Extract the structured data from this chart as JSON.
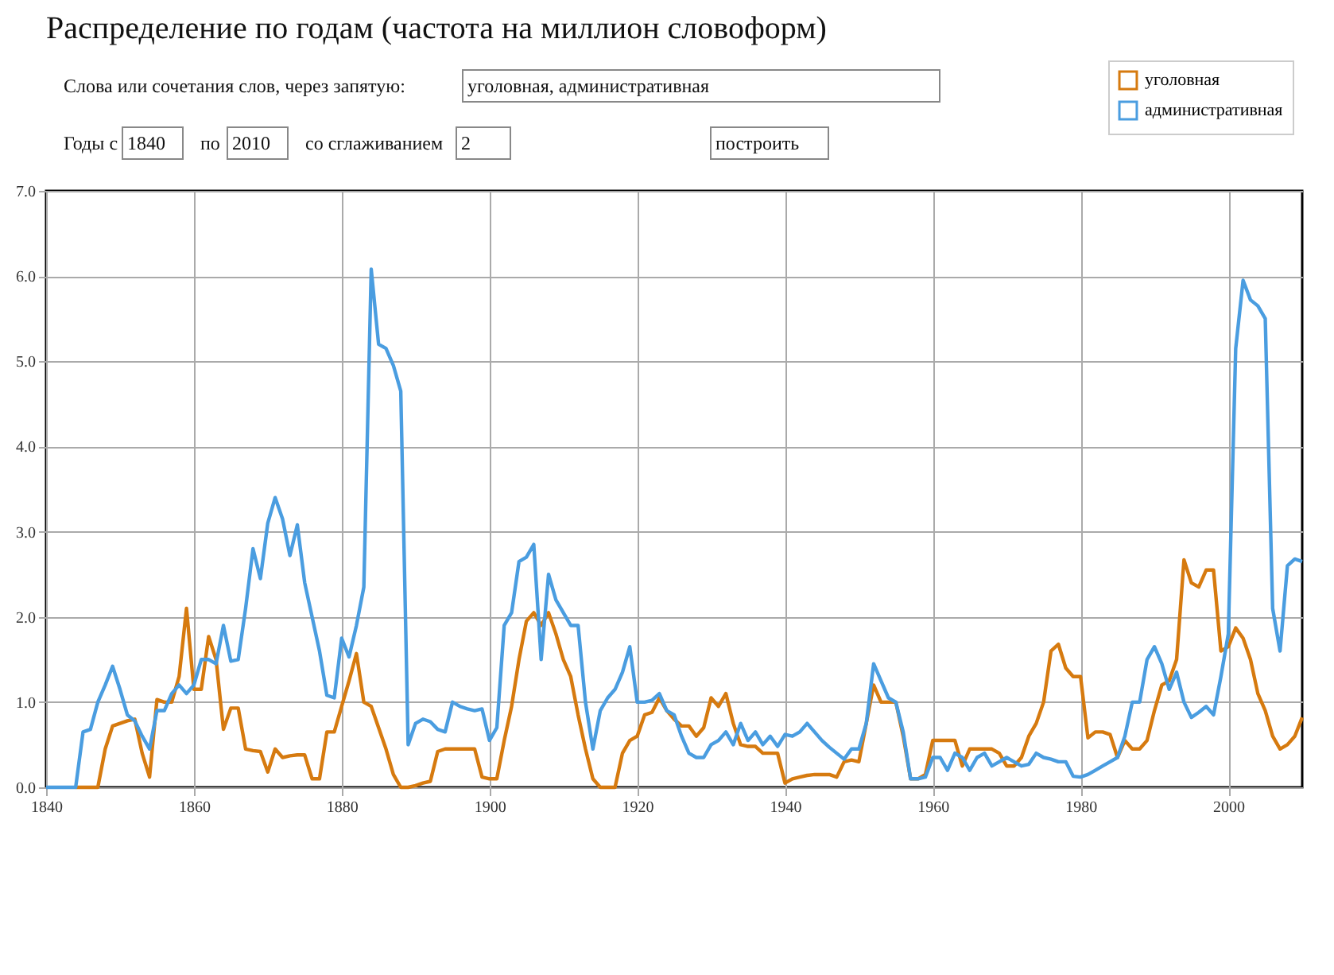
{
  "chart_data": {
    "type": "line",
    "title": "Распределение по годам (частота на миллион словоформ)",
    "annotations": [
      "Слова или сочетания слов, через запятую:",
      "уголовная, административная",
      "Годы с",
      "1840",
      "по",
      "2010",
      "со сглаживанием",
      "2",
      "построить"
    ],
    "x": [
      1840,
      1841,
      1842,
      1843,
      1844,
      1845,
      1846,
      1847,
      1848,
      1849,
      1850,
      1851,
      1852,
      1853,
      1854,
      1855,
      1856,
      1857,
      1858,
      1859,
      1860,
      1861,
      1862,
      1863,
      1864,
      1865,
      1866,
      1867,
      1868,
      1869,
      1870,
      1871,
      1872,
      1873,
      1874,
      1875,
      1876,
      1877,
      1878,
      1879,
      1880,
      1881,
      1882,
      1883,
      1884,
      1885,
      1886,
      1887,
      1888,
      1889,
      1890,
      1891,
      1892,
      1893,
      1894,
      1895,
      1896,
      1897,
      1898,
      1899,
      1900,
      1901,
      1902,
      1903,
      1904,
      1905,
      1906,
      1907,
      1908,
      1909,
      1910,
      1911,
      1912,
      1913,
      1914,
      1915,
      1916,
      1917,
      1918,
      1919,
      1920,
      1921,
      1922,
      1923,
      1924,
      1925,
      1926,
      1927,
      1928,
      1929,
      1930,
      1931,
      1932,
      1933,
      1934,
      1935,
      1936,
      1937,
      1938,
      1939,
      1940,
      1941,
      1942,
      1943,
      1944,
      1945,
      1946,
      1947,
      1948,
      1949,
      1950,
      1951,
      1952,
      1953,
      1954,
      1955,
      1956,
      1957,
      1958,
      1959,
      1960,
      1961,
      1962,
      1963,
      1964,
      1965,
      1966,
      1967,
      1968,
      1969,
      1970,
      1971,
      1972,
      1973,
      1974,
      1975,
      1976,
      1977,
      1978,
      1979,
      1980,
      1981,
      1982,
      1983,
      1984,
      1985,
      1986,
      1987,
      1988,
      1989,
      1990,
      1991,
      1992,
      1993,
      1994,
      1995,
      1996,
      1997,
      1998,
      1999,
      2000,
      2001,
      2002,
      2003,
      2004,
      2005,
      2006,
      2007,
      2008,
      2009,
      2010
    ],
    "series": [
      {
        "name": "уголовная",
        "color": "#d67a0f",
        "values": [
          null,
          null,
          null,
          null,
          0,
          0,
          0,
          0,
          0.45,
          0.72,
          0.75,
          0.78,
          0.8,
          0.4,
          0.12,
          1.03,
          1.0,
          1.0,
          1.3,
          2.1,
          1.15,
          1.15,
          1.77,
          1.5,
          0.68,
          0.93,
          0.93,
          0.45,
          0.43,
          0.42,
          0.18,
          0.45,
          0.35,
          0.37,
          0.38,
          0.38,
          0.1,
          0.1,
          0.65,
          0.65,
          0.95,
          1.25,
          1.57,
          1.0,
          0.95,
          0.7,
          0.45,
          0.15,
          0,
          0,
          0.02,
          0.05,
          0.07,
          0.42,
          0.45,
          0.45,
          0.45,
          0.45,
          0.45,
          0.12,
          0.1,
          0.1,
          0.55,
          0.95,
          1.5,
          1.95,
          2.05,
          1.9,
          2.05,
          1.8,
          1.5,
          1.3,
          0.85,
          0.45,
          0.1,
          0,
          0,
          0,
          0.4,
          0.55,
          0.6,
          0.85,
          0.88,
          1.05,
          0.9,
          0.8,
          0.72,
          0.72,
          0.6,
          0.7,
          1.05,
          0.95,
          1.1,
          0.75,
          0.5,
          0.48,
          0.48,
          0.4,
          0.4,
          0.4,
          0.05,
          0.1,
          0.12,
          0.14,
          0.15,
          0.15,
          0.15,
          0.12,
          0.3,
          0.32,
          0.3,
          0.75,
          1.2,
          1.0,
          1.0,
          1.0,
          0.6,
          0.1,
          0.1,
          0.15,
          0.55,
          0.55,
          0.55,
          0.55,
          0.25,
          0.45,
          0.45,
          0.45,
          0.45,
          0.4,
          0.25,
          0.25,
          0.35,
          0.6,
          0.75,
          1.0,
          1.6,
          1.68,
          1.4,
          1.3,
          1.3,
          0.58,
          0.65,
          0.65,
          0.62,
          0.35,
          0.55,
          0.45,
          0.45,
          0.55,
          0.9,
          1.2,
          1.25,
          1.5,
          2.67,
          2.4,
          2.35,
          2.55,
          2.55,
          1.6,
          1.65,
          1.87,
          1.75,
          1.5,
          1.1,
          0.9,
          0.6,
          0.45,
          0.5,
          0.6,
          0.82
        ]
      },
      {
        "name": "административная",
        "color": "#4a9de0",
        "values": [
          0,
          0,
          0,
          0,
          0,
          0.65,
          0.68,
          1.0,
          1.2,
          1.42,
          1.15,
          0.85,
          0.78,
          0.6,
          0.45,
          0.9,
          0.9,
          1.1,
          1.2,
          1.1,
          1.2,
          1.5,
          1.5,
          1.45,
          1.9,
          1.48,
          1.5,
          2.1,
          2.8,
          2.45,
          3.1,
          3.4,
          3.15,
          2.72,
          3.08,
          2.4,
          2.0,
          1.6,
          1.08,
          1.05,
          1.75,
          1.53,
          1.9,
          2.35,
          6.08,
          5.2,
          5.15,
          4.95,
          4.65,
          0.5,
          0.75,
          0.8,
          0.77,
          0.68,
          0.65,
          1.0,
          0.95,
          0.92,
          0.9,
          0.92,
          0.55,
          0.7,
          1.9,
          2.05,
          2.65,
          2.7,
          2.85,
          1.5,
          2.5,
          2.2,
          2.05,
          1.9,
          1.9,
          1.0,
          0.45,
          0.9,
          1.05,
          1.15,
          1.35,
          1.65,
          1.0,
          1.0,
          1.02,
          1.1,
          0.9,
          0.85,
          0.6,
          0.4,
          0.35,
          0.35,
          0.5,
          0.55,
          0.65,
          0.5,
          0.75,
          0.55,
          0.65,
          0.5,
          0.6,
          0.48,
          0.62,
          0.6,
          0.65,
          0.75,
          0.65,
          0.55,
          0.47,
          0.4,
          0.33,
          0.45,
          0.45,
          0.75,
          1.45,
          1.25,
          1.05,
          1.0,
          0.65,
          0.1,
          0.1,
          0.12,
          0.35,
          0.35,
          0.2,
          0.4,
          0.35,
          0.2,
          0.35,
          0.4,
          0.25,
          0.3,
          0.35,
          0.3,
          0.25,
          0.27,
          0.4,
          0.35,
          0.33,
          0.3,
          0.3,
          0.13,
          0.12,
          0.15,
          0.2,
          0.25,
          0.3,
          0.35,
          0.6,
          1.0,
          1.0,
          1.5,
          1.65,
          1.45,
          1.15,
          1.35,
          1.0,
          0.82,
          0.88,
          0.95,
          0.85,
          1.3,
          1.8,
          5.15,
          5.95,
          5.72,
          5.65,
          5.5,
          2.1,
          1.6,
          2.6,
          2.68,
          2.65
        ]
      }
    ],
    "xlim": [
      1840,
      2010
    ],
    "xticks": [
      1840,
      1860,
      1880,
      1900,
      1920,
      1940,
      1960,
      1980,
      2000
    ],
    "ylim": [
      0,
      7
    ],
    "yticks": [
      {
        "value": 0,
        "label": "0.0"
      },
      {
        "value": 1,
        "label": "1.0"
      },
      {
        "value": 2,
        "label": "2.0"
      },
      {
        "value": 3,
        "label": "3.0"
      },
      {
        "value": 4,
        "label": "4.0"
      },
      {
        "value": 5,
        "label": "5.0"
      },
      {
        "value": 6,
        "label": "6.0"
      },
      {
        "value": 7,
        "label": "7.0"
      }
    ],
    "grid": true,
    "legend": "top right",
    "line_style": "solid",
    "marker": "none"
  }
}
